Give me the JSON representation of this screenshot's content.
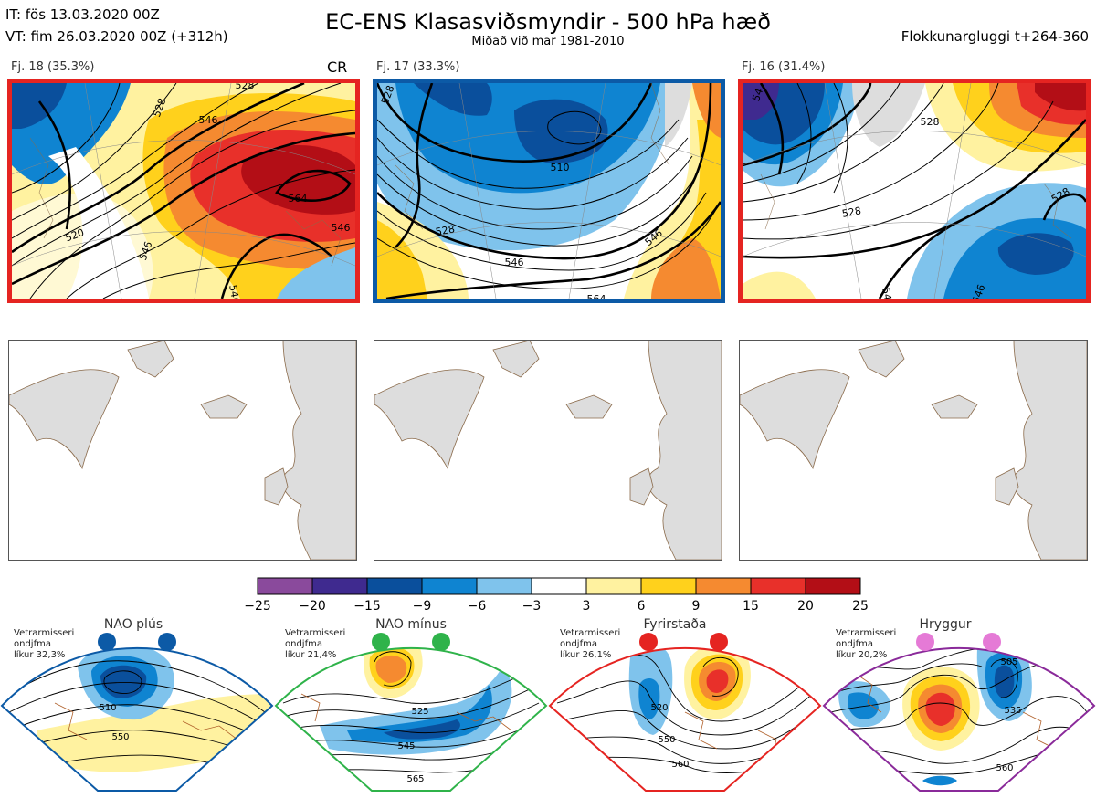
{
  "header": {
    "initial_time": "IT: fös 13.03.2020 00Z",
    "valid_time": "VT: fim 26.03.2020 00Z  (+312h)",
    "title": "EC-ENS Klasasviðsmyndir - 500 hPa hæð",
    "subtitle": "Miðað við mar 1981-2010",
    "window": "Flokkunargluggi t+264-360"
  },
  "cluster_tag": "CR",
  "clusters": [
    {
      "label": "Fj. 18 (35.3%)",
      "frame_color": "#e52421",
      "contours": [
        "528",
        "546",
        "520",
        "564",
        "546",
        "546",
        "528",
        "546"
      ]
    },
    {
      "label": "Fj. 17 (33.3%)",
      "frame_color": "#0c5aa6",
      "contours": [
        "528",
        "510",
        "528",
        "546",
        "546",
        "564"
      ]
    },
    {
      "label": "Fj. 16 (31.4%)",
      "frame_color": "#e52421",
      "contours": [
        "54",
        "528",
        "528",
        "546",
        "546",
        "528"
      ]
    }
  ],
  "colorbar": {
    "ticks": [
      "−25",
      "−20",
      "−15",
      "−9",
      "−6",
      "−3",
      "3",
      "6",
      "9",
      "15",
      "20",
      "25"
    ],
    "colors": [
      "#8a4a9c",
      "#3f2a8f",
      "#0a4f9c",
      "#0f84d1",
      "#7fc3ec",
      "#ffffff",
      "#fff2a0",
      "#ffd11c",
      "#f58a30",
      "#e8302a",
      "#b30e16"
    ]
  },
  "regimes": [
    {
      "name": "NAO plús",
      "note_lines": [
        "Vetrarmisseri",
        "ondjfma",
        "líkur 32,3%"
      ],
      "dot_color": "#0c5aa6",
      "frame_color": "#0c5aa6",
      "contours": [
        "510",
        "550"
      ]
    },
    {
      "name": "NAO mínus",
      "note_lines": [
        "Vetrarmisseri",
        "ondjfma",
        "líkur 21,4%"
      ],
      "dot_color": "#2fb34a",
      "frame_color": "#2fb34a",
      "contours": [
        "525",
        "545",
        "565"
      ]
    },
    {
      "name": "Fyrirstaða",
      "note_lines": [
        "Vetrarmisseri",
        "ondjfma",
        "líkur 26,1%"
      ],
      "dot_color": "#e52421",
      "frame_color": "#e52421",
      "contours": [
        "520",
        "550",
        "560"
      ]
    },
    {
      "name": "Hryggur",
      "note_lines": [
        "Vetrarmisseri",
        "ondjfma",
        "líkur 20,2%"
      ],
      "dot_color": "#e57ad6",
      "frame_color": "#8a2a9a",
      "contours": [
        "505",
        "535",
        "560"
      ]
    }
  ],
  "chart_data": [
    {
      "type": "heatmap",
      "title": "Fj. 18 (35.3%)",
      "contour_labels": [
        528,
        546,
        520,
        564,
        546,
        546,
        528,
        546
      ]
    },
    {
      "type": "heatmap",
      "title": "Fj. 17 (33.3%)",
      "contour_labels": [
        528,
        510,
        528,
        546,
        546,
        564
      ]
    },
    {
      "type": "heatmap",
      "title": "Fj. 16 (31.4%)",
      "contour_labels": [
        54,
        528,
        528,
        546,
        546,
        528
      ]
    },
    {
      "type": "bar",
      "categories": [
        "−25",
        "−20",
        "−15",
        "−9",
        "−6",
        "−3",
        "3",
        "6",
        "9",
        "15",
        "20",
        "25"
      ],
      "values": [
        -25,
        -20,
        -15,
        -9,
        -6,
        -3,
        3,
        6,
        9,
        15,
        20,
        25
      ]
    },
    {
      "type": "heatmap",
      "title": "NAO plús",
      "contour_labels": [
        510,
        550
      ]
    },
    {
      "type": "heatmap",
      "title": "NAO mínus",
      "contour_labels": [
        525,
        545,
        565
      ]
    },
    {
      "type": "heatmap",
      "title": "Fyrirstaða",
      "contour_labels": [
        520,
        550,
        560
      ]
    },
    {
      "type": "heatmap",
      "title": "Hryggur",
      "contour_labels": [
        505,
        535,
        560
      ]
    }
  ]
}
